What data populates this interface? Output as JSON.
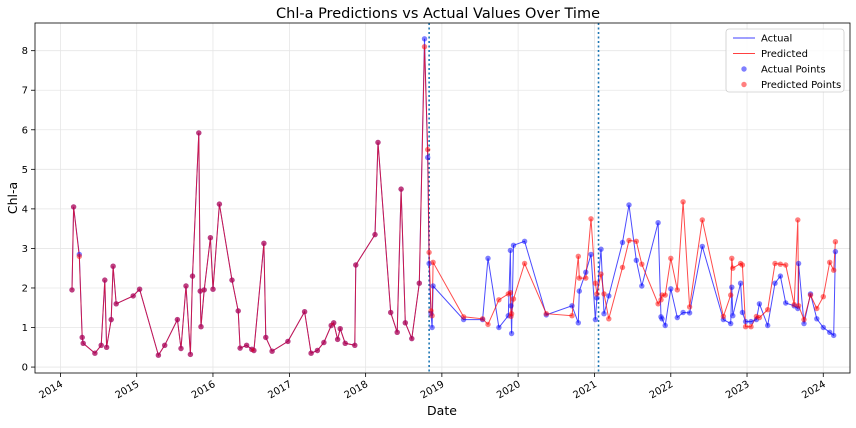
{
  "chart_data": {
    "type": "line",
    "title": "Chl-a Predictions vs Actual Values Over Time",
    "xlabel": "Date",
    "ylabel": "Chl-a",
    "xlim": [
      "2013-09-01",
      "2024-05-08"
    ],
    "ylim": [
      -0.15,
      8.7
    ],
    "x_ticks": [
      "2014",
      "2015",
      "2016",
      "2017",
      "2018",
      "2019",
      "2020",
      "2021",
      "2022",
      "2023",
      "2024"
    ],
    "y_ticks": [
      0,
      1,
      2,
      3,
      4,
      5,
      6,
      7,
      8
    ],
    "grid": true,
    "legend_position": "top-right",
    "legend": [
      {
        "label": "Actual",
        "kind": "line",
        "color": "#0000ff"
      },
      {
        "label": "Predicted",
        "kind": "line",
        "color": "#ff0000"
      },
      {
        "label": "Actual Points",
        "kind": "point",
        "color": "#0000ff"
      },
      {
        "label": "Predicted Points",
        "kind": "point",
        "color": "#ff0000"
      }
    ],
    "vlines": [
      "2018-11-01",
      "2021-01-20"
    ],
    "vline_color": "#1f77b4",
    "series": [
      {
        "name": "Actual",
        "color": "#0000ff",
        "points": [
          [
            "2014-02-25",
            1.95
          ],
          [
            "2014-03-05",
            4.05
          ],
          [
            "2014-04-01",
            2.85
          ],
          [
            "2014-04-15",
            0.75
          ],
          [
            "2014-04-20",
            0.6
          ],
          [
            "2014-06-15",
            0.35
          ],
          [
            "2014-07-15",
            0.55
          ],
          [
            "2014-08-01",
            2.2
          ],
          [
            "2014-08-10",
            0.5
          ],
          [
            "2014-09-01",
            1.2
          ],
          [
            "2014-09-10",
            2.55
          ],
          [
            "2014-09-25",
            1.6
          ],
          [
            "2014-12-15",
            1.8
          ],
          [
            "2015-01-15",
            1.97
          ],
          [
            "2015-04-15",
            0.3
          ],
          [
            "2015-05-15",
            0.55
          ],
          [
            "2015-07-15",
            1.2
          ],
          [
            "2015-08-01",
            0.47
          ],
          [
            "2015-08-25",
            2.05
          ],
          [
            "2015-09-15",
            0.32
          ],
          [
            "2015-09-25",
            2.3
          ],
          [
            "2015-10-25",
            5.92
          ],
          [
            "2015-11-01",
            1.92
          ],
          [
            "2015-11-05",
            1.02
          ],
          [
            "2015-11-20",
            1.95
          ],
          [
            "2015-12-20",
            3.27
          ],
          [
            "2016-01-01",
            1.97
          ],
          [
            "2016-02-01",
            4.12
          ],
          [
            "2016-04-01",
            2.2
          ],
          [
            "2016-05-01",
            1.42
          ],
          [
            "2016-05-10",
            0.48
          ],
          [
            "2016-06-10",
            0.55
          ],
          [
            "2016-07-05",
            0.45
          ],
          [
            "2016-07-15",
            0.42
          ],
          [
            "2016-09-01",
            3.13
          ],
          [
            "2016-09-10",
            0.75
          ],
          [
            "2016-10-10",
            0.4
          ],
          [
            "2016-12-25",
            0.65
          ],
          [
            "2017-03-15",
            1.4
          ],
          [
            "2017-04-15",
            0.35
          ],
          [
            "2017-05-15",
            0.42
          ],
          [
            "2017-06-15",
            0.62
          ],
          [
            "2017-07-20",
            1.05
          ],
          [
            "2017-08-01",
            1.12
          ],
          [
            "2017-08-20",
            0.7
          ],
          [
            "2017-09-01",
            0.97
          ],
          [
            "2017-09-25",
            0.6
          ],
          [
            "2017-11-10",
            0.55
          ],
          [
            "2017-11-15",
            2.58
          ],
          [
            "2018-02-15",
            3.35
          ],
          [
            "2018-03-01",
            5.68
          ],
          [
            "2018-05-01",
            1.38
          ],
          [
            "2018-06-01",
            0.88
          ],
          [
            "2018-06-20",
            4.5
          ],
          [
            "2018-07-10",
            1.12
          ],
          [
            "2018-08-10",
            0.72
          ],
          [
            "2018-09-15",
            2.12
          ],
          [
            "2018-10-10",
            8.3
          ],
          [
            "2018-10-25",
            5.3
          ],
          [
            "2018-11-01",
            2.62
          ],
          [
            "2018-11-10",
            1.35
          ],
          [
            "2018-11-15",
            1.0
          ],
          [
            "2018-11-20",
            2.05
          ],
          [
            "2019-04-15",
            1.2
          ],
          [
            "2019-07-15",
            1.2
          ],
          [
            "2019-08-10",
            2.75
          ],
          [
            "2019-10-01",
            1.0
          ],
          [
            "2019-11-15",
            1.3
          ],
          [
            "2019-11-25",
            2.95
          ],
          [
            "2019-11-28",
            1.55
          ],
          [
            "2019-12-01",
            0.85
          ],
          [
            "2019-12-10",
            3.08
          ],
          [
            "2020-02-01",
            3.18
          ],
          [
            "2020-05-15",
            1.32
          ],
          [
            "2020-09-15",
            1.55
          ],
          [
            "2020-10-15",
            1.12
          ],
          [
            "2020-10-20",
            1.92
          ],
          [
            "2020-11-20",
            2.4
          ],
          [
            "2020-12-15",
            2.85
          ],
          [
            "2021-01-05",
            1.2
          ],
          [
            "2021-01-12",
            1.75
          ],
          [
            "2021-02-01",
            2.98
          ],
          [
            "2021-02-15",
            1.35
          ],
          [
            "2021-03-10",
            1.8
          ],
          [
            "2021-05-15",
            3.15
          ],
          [
            "2021-06-15",
            4.1
          ],
          [
            "2021-07-20",
            2.7
          ],
          [
            "2021-08-15",
            2.05
          ],
          [
            "2021-11-01",
            3.65
          ],
          [
            "2021-11-15",
            1.27
          ],
          [
            "2021-11-20",
            1.22
          ],
          [
            "2021-12-05",
            1.05
          ],
          [
            "2022-01-01",
            1.98
          ],
          [
            "2022-02-01",
            1.25
          ],
          [
            "2022-03-01",
            1.38
          ],
          [
            "2022-04-01",
            1.37
          ],
          [
            "2022-06-01",
            3.05
          ],
          [
            "2022-09-10",
            1.2
          ],
          [
            "2022-10-15",
            1.1
          ],
          [
            "2022-10-20",
            2.02
          ],
          [
            "2022-10-25",
            1.3
          ],
          [
            "2022-12-01",
            2.12
          ],
          [
            "2022-12-10",
            1.38
          ],
          [
            "2022-12-25",
            1.15
          ],
          [
            "2023-01-20",
            1.15
          ],
          [
            "2023-02-15",
            1.2
          ],
          [
            "2023-03-01",
            1.6
          ],
          [
            "2023-04-10",
            1.05
          ],
          [
            "2023-05-15",
            2.12
          ],
          [
            "2023-06-10",
            2.3
          ],
          [
            "2023-07-05",
            1.62
          ],
          [
            "2023-08-15",
            1.55
          ],
          [
            "2023-09-01",
            1.48
          ],
          [
            "2023-09-05",
            2.62
          ],
          [
            "2023-10-01",
            1.1
          ],
          [
            "2023-11-01",
            1.85
          ],
          [
            "2023-12-01",
            1.22
          ],
          [
            "2024-01-01",
            1.0
          ],
          [
            "2024-02-01",
            0.88
          ],
          [
            "2024-02-20",
            0.8
          ],
          [
            "2024-02-28",
            2.92
          ]
        ]
      },
      {
        "name": "Predicted",
        "color": "#ff0000",
        "points": [
          [
            "2014-02-25",
            1.95
          ],
          [
            "2014-03-05",
            4.05
          ],
          [
            "2014-04-01",
            2.8
          ],
          [
            "2014-04-15",
            0.75
          ],
          [
            "2014-04-20",
            0.6
          ],
          [
            "2014-06-15",
            0.35
          ],
          [
            "2014-07-15",
            0.55
          ],
          [
            "2014-08-01",
            2.2
          ],
          [
            "2014-08-10",
            0.5
          ],
          [
            "2014-09-01",
            1.2
          ],
          [
            "2014-09-10",
            2.55
          ],
          [
            "2014-09-25",
            1.6
          ],
          [
            "2014-12-15",
            1.8
          ],
          [
            "2015-01-15",
            1.97
          ],
          [
            "2015-04-15",
            0.3
          ],
          [
            "2015-05-15",
            0.55
          ],
          [
            "2015-07-15",
            1.2
          ],
          [
            "2015-08-01",
            0.47
          ],
          [
            "2015-08-25",
            2.05
          ],
          [
            "2015-09-15",
            0.32
          ],
          [
            "2015-09-25",
            2.3
          ],
          [
            "2015-10-25",
            5.92
          ],
          [
            "2015-11-01",
            1.92
          ],
          [
            "2015-11-05",
            1.02
          ],
          [
            "2015-11-20",
            1.95
          ],
          [
            "2015-12-20",
            3.27
          ],
          [
            "2016-01-01",
            1.97
          ],
          [
            "2016-02-01",
            4.12
          ],
          [
            "2016-04-01",
            2.2
          ],
          [
            "2016-05-01",
            1.42
          ],
          [
            "2016-05-10",
            0.48
          ],
          [
            "2016-06-10",
            0.55
          ],
          [
            "2016-07-05",
            0.45
          ],
          [
            "2016-07-15",
            0.42
          ],
          [
            "2016-09-01",
            3.13
          ],
          [
            "2016-09-10",
            0.75
          ],
          [
            "2016-10-10",
            0.4
          ],
          [
            "2016-12-25",
            0.65
          ],
          [
            "2017-03-15",
            1.4
          ],
          [
            "2017-04-15",
            0.35
          ],
          [
            "2017-05-15",
            0.42
          ],
          [
            "2017-06-15",
            0.62
          ],
          [
            "2017-07-20",
            1.05
          ],
          [
            "2017-08-01",
            1.12
          ],
          [
            "2017-08-20",
            0.7
          ],
          [
            "2017-09-01",
            0.97
          ],
          [
            "2017-09-25",
            0.6
          ],
          [
            "2017-11-10",
            0.55
          ],
          [
            "2017-11-15",
            2.58
          ],
          [
            "2018-02-15",
            3.35
          ],
          [
            "2018-03-01",
            5.68
          ],
          [
            "2018-05-01",
            1.38
          ],
          [
            "2018-06-01",
            0.88
          ],
          [
            "2018-06-20",
            4.5
          ],
          [
            "2018-07-10",
            1.12
          ],
          [
            "2018-08-10",
            0.72
          ],
          [
            "2018-09-15",
            2.12
          ],
          [
            "2018-10-10",
            8.1
          ],
          [
            "2018-10-25",
            5.5
          ],
          [
            "2018-11-01",
            2.9
          ],
          [
            "2018-11-10",
            1.42
          ],
          [
            "2018-11-15",
            1.3
          ],
          [
            "2018-11-20",
            2.65
          ],
          [
            "2019-04-15",
            1.27
          ],
          [
            "2019-07-15",
            1.22
          ],
          [
            "2019-08-10",
            1.08
          ],
          [
            "2019-10-01",
            1.7
          ],
          [
            "2019-11-15",
            1.85
          ],
          [
            "2019-11-25",
            1.88
          ],
          [
            "2019-11-28",
            1.28
          ],
          [
            "2019-12-01",
            1.35
          ],
          [
            "2019-12-10",
            1.72
          ],
          [
            "2020-02-01",
            2.62
          ],
          [
            "2020-05-15",
            1.35
          ],
          [
            "2020-09-15",
            1.3
          ],
          [
            "2020-10-15",
            2.8
          ],
          [
            "2020-10-20",
            2.25
          ],
          [
            "2020-11-20",
            2.25
          ],
          [
            "2020-12-15",
            3.75
          ],
          [
            "2021-01-05",
            2.12
          ],
          [
            "2021-01-12",
            1.85
          ],
          [
            "2021-02-01",
            2.35
          ],
          [
            "2021-02-15",
            1.85
          ],
          [
            "2021-03-10",
            1.22
          ],
          [
            "2021-05-15",
            2.52
          ],
          [
            "2021-06-15",
            3.2
          ],
          [
            "2021-07-20",
            3.18
          ],
          [
            "2021-08-15",
            2.6
          ],
          [
            "2021-11-01",
            1.6
          ],
          [
            "2021-11-15",
            1.7
          ],
          [
            "2021-11-20",
            1.82
          ],
          [
            "2021-12-05",
            1.82
          ],
          [
            "2022-01-01",
            2.75
          ],
          [
            "2022-02-01",
            1.95
          ],
          [
            "2022-03-01",
            4.18
          ],
          [
            "2022-04-01",
            1.52
          ],
          [
            "2022-06-01",
            3.72
          ],
          [
            "2022-09-10",
            1.28
          ],
          [
            "2022-10-15",
            1.82
          ],
          [
            "2022-10-20",
            2.75
          ],
          [
            "2022-10-25",
            2.5
          ],
          [
            "2022-12-01",
            2.62
          ],
          [
            "2022-12-10",
            2.58
          ],
          [
            "2022-12-25",
            1.02
          ],
          [
            "2023-01-20",
            1.02
          ],
          [
            "2023-02-15",
            1.28
          ],
          [
            "2023-03-01",
            1.25
          ],
          [
            "2023-04-10",
            1.45
          ],
          [
            "2023-05-15",
            2.62
          ],
          [
            "2023-06-10",
            2.6
          ],
          [
            "2023-07-05",
            2.58
          ],
          [
            "2023-08-15",
            1.58
          ],
          [
            "2023-09-01",
            3.72
          ],
          [
            "2023-09-05",
            1.55
          ],
          [
            "2023-10-01",
            1.2
          ],
          [
            "2023-11-01",
            1.82
          ],
          [
            "2023-12-01",
            1.48
          ],
          [
            "2024-01-01",
            1.78
          ],
          [
            "2024-02-01",
            2.65
          ],
          [
            "2024-02-20",
            2.45
          ],
          [
            "2024-02-28",
            3.17
          ]
        ]
      }
    ]
  }
}
